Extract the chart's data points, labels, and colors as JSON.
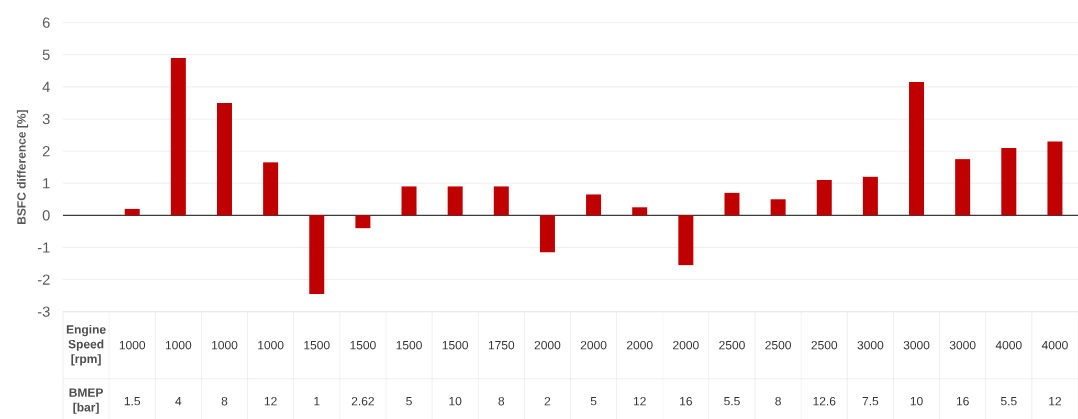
{
  "chart_data": {
    "type": "bar",
    "ylabel": "BSFC difference [%]",
    "xlabel": "Engine Speed [rpm]",
    "categories": [
      "1000",
      "1000",
      "1000",
      "1000",
      "1500",
      "1500",
      "1500",
      "1500",
      "1750",
      "2000",
      "2000",
      "2000",
      "2000",
      "2500",
      "2500",
      "2500",
      "3000",
      "3000",
      "3000",
      "4000",
      "4000"
    ],
    "values": [
      0.2,
      4.9,
      3.5,
      1.65,
      -2.45,
      -0.4,
      0.9,
      0.9,
      0.9,
      -1.15,
      0.65,
      0.25,
      -1.55,
      0.7,
      0.5,
      1.1,
      1.2,
      4.15,
      1.75,
      2.1,
      2.3
    ],
    "color": "#c00000",
    "ylim": [
      -3,
      6
    ],
    "yticks": [
      -3,
      -2,
      -1,
      0,
      1,
      2,
      3,
      4,
      5,
      6
    ],
    "grid": "y",
    "annotations": [
      "BMEP [bar]",
      "1.5",
      "4",
      "8",
      "12",
      "1",
      "2.62",
      "5",
      "10",
      "8",
      "2",
      "5",
      "12",
      "16",
      "5.5",
      "8",
      "12.6",
      "7.5",
      "10",
      "16",
      "5.5",
      "12"
    ]
  }
}
